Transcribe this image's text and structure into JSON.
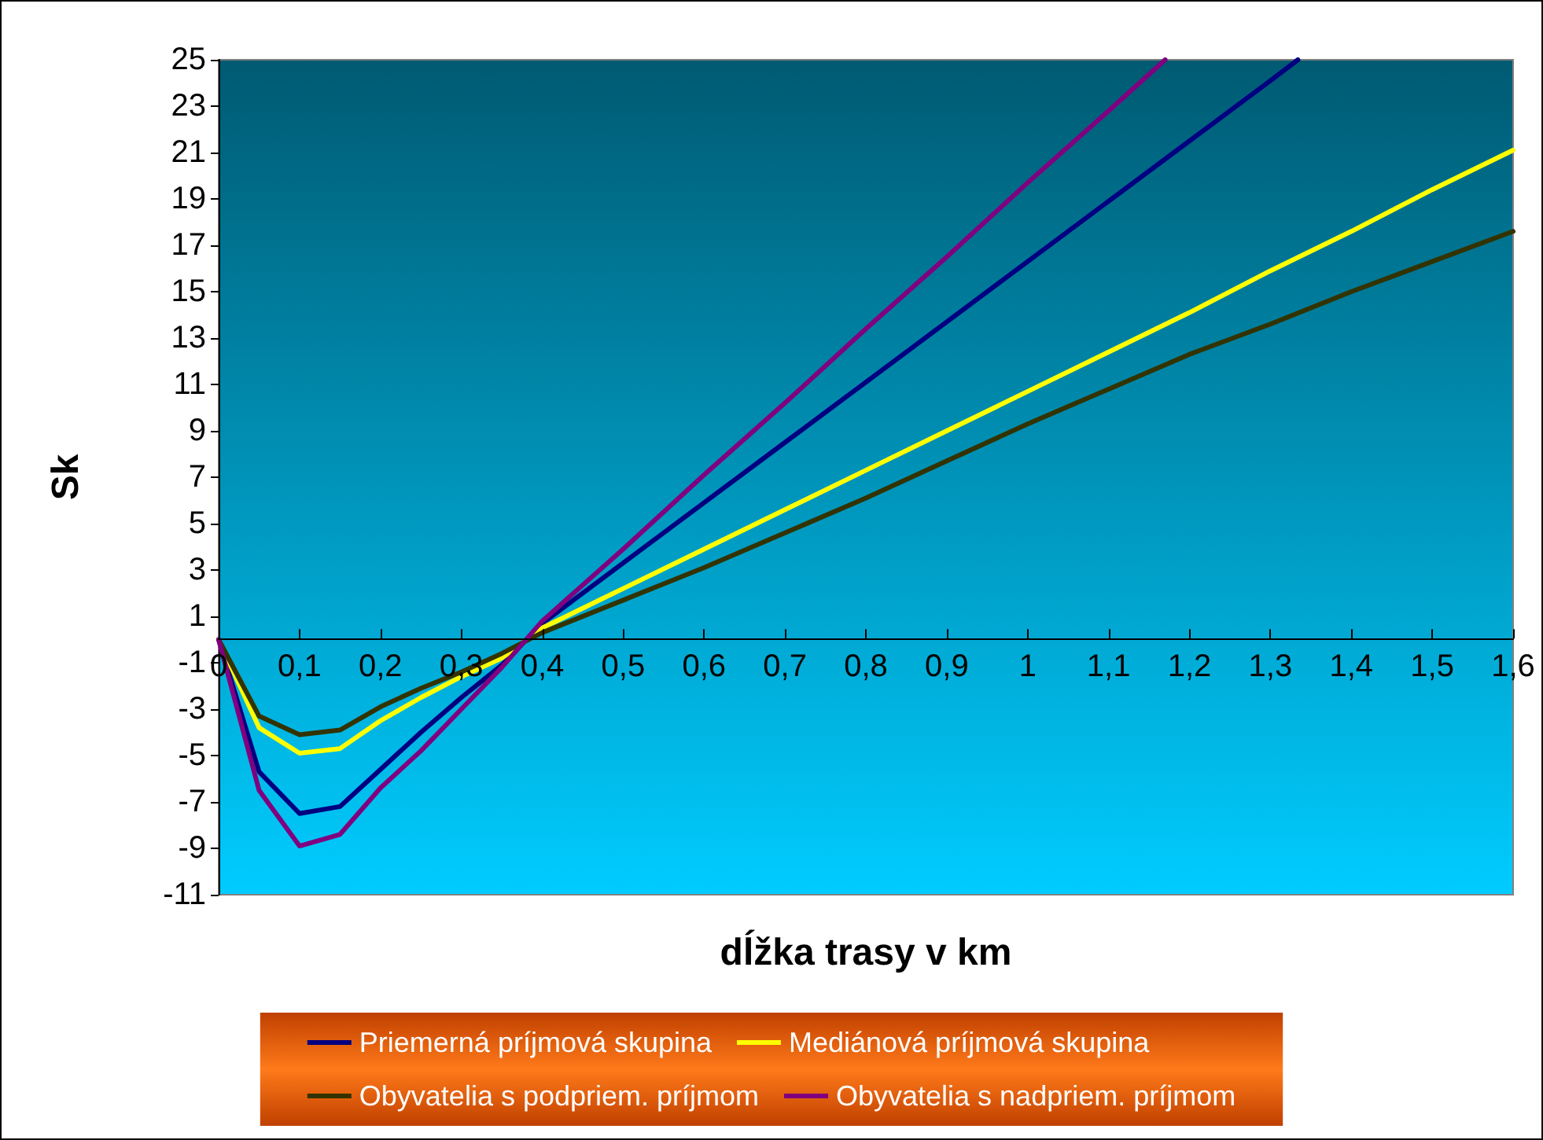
{
  "chart_data": {
    "type": "line",
    "xlabel": "dĺžka trasy v km",
    "ylabel": "Sk",
    "xlim": [
      0,
      1.6
    ],
    "ylim": [
      -11,
      25
    ],
    "xticks": [
      0,
      {
        "value": 0.1,
        "label": "0,1"
      },
      {
        "value": 0.2,
        "label": "0,2"
      },
      {
        "value": 0.3,
        "label": "0,3"
      },
      {
        "value": 0.4,
        "label": "0,4"
      },
      {
        "value": 0.5,
        "label": "0,5"
      },
      {
        "value": 0.6,
        "label": "0,6"
      },
      {
        "value": 0.7,
        "label": "0,7"
      },
      {
        "value": 0.8,
        "label": "0,8"
      },
      {
        "value": 0.9,
        "label": "0,9"
      },
      1,
      {
        "value": 1.1,
        "label": "1,1"
      },
      {
        "value": 1.2,
        "label": "1,2"
      },
      {
        "value": 1.3,
        "label": "1,3"
      },
      {
        "value": 1.4,
        "label": "1,4"
      },
      {
        "value": 1.5,
        "label": "1,5"
      },
      {
        "value": 1.6,
        "label": "1,6"
      }
    ],
    "yticks": [
      -11,
      -9,
      -7,
      -5,
      -3,
      -1,
      1,
      3,
      5,
      7,
      9,
      11,
      13,
      15,
      17,
      19,
      21,
      23,
      25
    ],
    "grid": false,
    "legend": "bottom",
    "marker": "none",
    "line_style": "solid",
    "series": [
      {
        "name": "Priemerná príjmová skupina",
        "color": "#000080",
        "x": [
          0,
          0.05,
          0.1,
          0.15,
          0.2,
          0.25,
          0.3,
          0.35,
          0.4,
          0.5,
          0.6,
          0.7,
          0.8,
          0.9,
          1.0,
          1.1,
          1.2,
          1.3,
          1.334
        ],
        "values": [
          0,
          -5.7,
          -7.5,
          -7.2,
          -5.6,
          -4.0,
          -2.5,
          -1.1,
          0.7,
          3.3,
          5.9,
          8.5,
          11.1,
          13.7,
          16.3,
          18.9,
          21.5,
          24.1,
          25
        ]
      },
      {
        "name": "Mediánová príjmová skupina",
        "color": "#ffff00",
        "x": [
          0,
          0.05,
          0.1,
          0.15,
          0.2,
          0.25,
          0.3,
          0.35,
          0.4,
          0.5,
          0.6,
          0.7,
          0.8,
          0.9,
          1.0,
          1.1,
          1.2,
          1.3,
          1.4,
          1.5,
          1.6
        ],
        "values": [
          0,
          -3.8,
          -4.9,
          -4.7,
          -3.5,
          -2.5,
          -1.6,
          -0.8,
          0.5,
          2.2,
          3.9,
          5.6,
          7.3,
          9.0,
          10.7,
          12.4,
          14.1,
          15.9,
          17.6,
          19.4,
          21.1
        ]
      },
      {
        "name": "Obyvatelia s podpriem. príjmom",
        "color": "#333300",
        "x": [
          0,
          0.05,
          0.1,
          0.15,
          0.2,
          0.25,
          0.3,
          0.35,
          0.4,
          0.5,
          0.6,
          0.7,
          0.8,
          0.9,
          1.0,
          1.1,
          1.2,
          1.3,
          1.4,
          1.5,
          1.6
        ],
        "values": [
          0,
          -3.3,
          -4.1,
          -3.9,
          -2.9,
          -2.1,
          -1.4,
          -0.6,
          0.3,
          1.7,
          3.1,
          4.6,
          6.1,
          7.7,
          9.3,
          10.8,
          12.3,
          13.6,
          15.0,
          16.3,
          17.6
        ]
      },
      {
        "name": "Obyvatelia s nadpriem. príjmom",
        "color": "#800080",
        "x": [
          0,
          0.05,
          0.1,
          0.15,
          0.2,
          0.25,
          0.3,
          0.35,
          0.4,
          0.5,
          0.6,
          0.7,
          0.8,
          0.9,
          1.0,
          1.1,
          1.17
        ],
        "values": [
          0,
          -6.5,
          -8.9,
          -8.4,
          -6.4,
          -4.8,
          -3.0,
          -1.2,
          0.8,
          3.9,
          7.1,
          10.2,
          13.4,
          16.5,
          19.7,
          22.8,
          25
        ]
      }
    ]
  }
}
